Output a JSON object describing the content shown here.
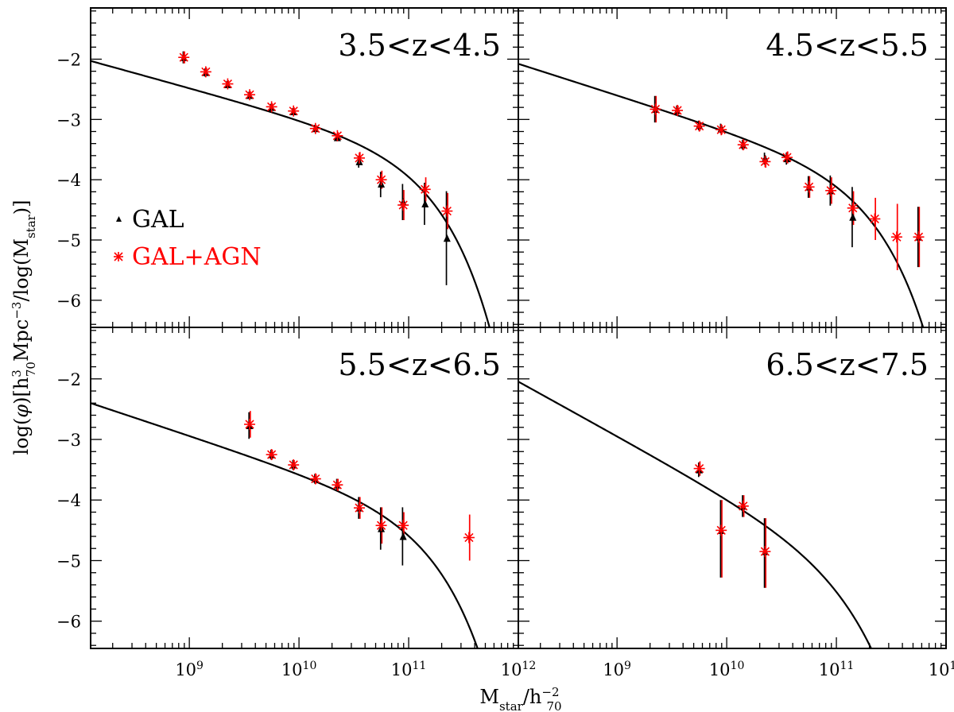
{
  "chart_data": {
    "type": "scatter",
    "figure": {
      "xlabel": {
        "main": "M",
        "sub": "star",
        "mid": "/h",
        "sub2": "70",
        "sup2": "−2"
      },
      "ylabel": {
        "p1": "log(",
        "phi": "φ",
        "p2": ")[h",
        "sup1": "3",
        "sub1": "70",
        "p3": "Mpc",
        "sup2": "−3",
        "p4": "/log(M",
        "sub2": "star",
        "p5": ")]"
      },
      "xscale": "log",
      "xlim_log10": [
        8.1,
        12.0
      ],
      "ylim": [
        -6.45,
        -1.15
      ],
      "x_tick_labels": [
        {
          "base": "10",
          "exp": "9",
          "pos": 9
        },
        {
          "base": "10",
          "exp": "10",
          "pos": 10
        },
        {
          "base": "10",
          "exp": "11",
          "pos": 11
        },
        {
          "base": "10",
          "exp": "12",
          "pos": 12
        }
      ],
      "y_ticks": [
        -2,
        -3,
        -4,
        -5,
        -6
      ],
      "y_tick_labels": [
        "−2",
        "−3",
        "−4",
        "−5",
        "−6"
      ],
      "legend": {
        "placement": "left-middle of top-left panel",
        "entries": [
          {
            "label": "GAL",
            "marker": "triangle",
            "color": "#000000"
          },
          {
            "label": "GAL+AGN",
            "marker": "asterisk",
            "color": "#ff0000"
          }
        ]
      },
      "colors": {
        "gal": "#000000",
        "agn": "#ff0000",
        "fit": "#000000"
      }
    },
    "panels": [
      {
        "label": "3.5<z<4.5",
        "fit": {
          "phi_star": 0.000151,
          "logm_star": 10.96,
          "alpha": -1.5
        },
        "gal": [
          {
            "x": 8.95,
            "y": -1.97,
            "elo": 0.1,
            "ehi": 0.1
          },
          {
            "x": 9.15,
            "y": -2.22,
            "elo": 0.07,
            "ehi": 0.07
          },
          {
            "x": 9.35,
            "y": -2.42,
            "elo": 0.06,
            "ehi": 0.06
          },
          {
            "x": 9.55,
            "y": -2.6,
            "elo": 0.06,
            "ehi": 0.06
          },
          {
            "x": 9.75,
            "y": -2.8,
            "elo": 0.06,
            "ehi": 0.06
          },
          {
            "x": 9.95,
            "y": -2.87,
            "elo": 0.06,
            "ehi": 0.06
          },
          {
            "x": 10.15,
            "y": -3.15,
            "elo": 0.06,
            "ehi": 0.06
          },
          {
            "x": 10.35,
            "y": -3.3,
            "elo": 0.06,
            "ehi": 0.06
          },
          {
            "x": 10.55,
            "y": -3.7,
            "elo": 0.1,
            "ehi": 0.1
          },
          {
            "x": 10.75,
            "y": -4.07,
            "elo": 0.22,
            "ehi": 0.2
          },
          {
            "x": 10.95,
            "y": -4.37,
            "elo": 0.3,
            "ehi": 0.3
          },
          {
            "x": 11.15,
            "y": -4.4,
            "elo": 0.35,
            "ehi": 0.35
          },
          {
            "x": 11.35,
            "y": -4.97,
            "elo": 0.78,
            "ehi": 0.78
          }
        ],
        "agn": [
          {
            "x": 8.95,
            "y": -1.97,
            "elo": 0.1,
            "ehi": 0.1
          },
          {
            "x": 9.15,
            "y": -2.21,
            "elo": 0.07,
            "ehi": 0.07
          },
          {
            "x": 9.35,
            "y": -2.41,
            "elo": 0.06,
            "ehi": 0.06
          },
          {
            "x": 9.55,
            "y": -2.59,
            "elo": 0.06,
            "ehi": 0.06
          },
          {
            "x": 9.75,
            "y": -2.79,
            "elo": 0.06,
            "ehi": 0.06
          },
          {
            "x": 9.95,
            "y": -2.86,
            "elo": 0.06,
            "ehi": 0.06
          },
          {
            "x": 10.15,
            "y": -3.15,
            "elo": 0.06,
            "ehi": 0.06
          },
          {
            "x": 10.35,
            "y": -3.27,
            "elo": 0.06,
            "ehi": 0.06
          },
          {
            "x": 10.55,
            "y": -3.64,
            "elo": 0.1,
            "ehi": 0.1
          },
          {
            "x": 10.75,
            "y": -4.0,
            "elo": 0.15,
            "ehi": 0.15
          },
          {
            "x": 10.95,
            "y": -4.42,
            "elo": 0.25,
            "ehi": 0.25
          },
          {
            "x": 11.15,
            "y": -4.16,
            "elo": 0.2,
            "ehi": 0.2
          },
          {
            "x": 11.35,
            "y": -4.52,
            "elo": 0.3,
            "ehi": 0.3
          }
        ]
      },
      {
        "label": "4.5<z<5.5",
        "fit": {
          "phi_star": 6.8e-05,
          "logm_star": 11.08,
          "alpha": -1.58
        },
        "gal": [
          {
            "x": 9.35,
            "y": -2.83,
            "elo": 0.22,
            "ehi": 0.22
          },
          {
            "x": 9.55,
            "y": -2.85,
            "elo": 0.08,
            "ehi": 0.08
          },
          {
            "x": 9.75,
            "y": -3.1,
            "elo": 0.08,
            "ehi": 0.08
          },
          {
            "x": 9.95,
            "y": -3.15,
            "elo": 0.08,
            "ehi": 0.08
          },
          {
            "x": 10.15,
            "y": -3.42,
            "elo": 0.08,
            "ehi": 0.08
          },
          {
            "x": 10.35,
            "y": -3.65,
            "elo": 0.1,
            "ehi": 0.1
          },
          {
            "x": 10.55,
            "y": -3.65,
            "elo": 0.1,
            "ehi": 0.1
          },
          {
            "x": 10.75,
            "y": -4.12,
            "elo": 0.18,
            "ehi": 0.18
          },
          {
            "x": 10.95,
            "y": -4.18,
            "elo": 0.25,
            "ehi": 0.25
          },
          {
            "x": 11.15,
            "y": -4.62,
            "elo": 0.5,
            "ehi": 0.5
          },
          {
            "x": 11.75,
            "y": -4.95,
            "elo": 0.5,
            "ehi": 0.5
          }
        ],
        "agn": [
          {
            "x": 9.35,
            "y": -2.83,
            "elo": 0.22,
            "ehi": 0.22
          },
          {
            "x": 9.55,
            "y": -2.85,
            "elo": 0.08,
            "ehi": 0.08
          },
          {
            "x": 9.75,
            "y": -3.11,
            "elo": 0.08,
            "ehi": 0.08
          },
          {
            "x": 9.95,
            "y": -3.17,
            "elo": 0.08,
            "ehi": 0.08
          },
          {
            "x": 10.15,
            "y": -3.42,
            "elo": 0.08,
            "ehi": 0.08
          },
          {
            "x": 10.35,
            "y": -3.7,
            "elo": 0.1,
            "ehi": 0.1
          },
          {
            "x": 10.55,
            "y": -3.63,
            "elo": 0.1,
            "ehi": 0.1
          },
          {
            "x": 10.75,
            "y": -4.12,
            "elo": 0.18,
            "ehi": 0.18
          },
          {
            "x": 10.95,
            "y": -4.18,
            "elo": 0.22,
            "ehi": 0.22
          },
          {
            "x": 11.15,
            "y": -4.47,
            "elo": 0.28,
            "ehi": 0.28
          },
          {
            "x": 11.35,
            "y": -4.65,
            "elo": 0.35,
            "ehi": 0.35
          },
          {
            "x": 11.55,
            "y": -4.95,
            "elo": 0.55,
            "ehi": 0.55
          },
          {
            "x": 11.75,
            "y": -4.95,
            "elo": 0.5,
            "ehi": 0.5
          }
        ]
      },
      {
        "label": "5.5<z<6.5",
        "fit": {
          "phi_star": 3.24e-05,
          "logm_star": 10.98,
          "alpha": -1.6
        },
        "gal": [
          {
            "x": 9.55,
            "y": -2.77,
            "elo": 0.22,
            "ehi": 0.22
          },
          {
            "x": 9.75,
            "y": -3.25,
            "elo": 0.08,
            "ehi": 0.08
          },
          {
            "x": 9.95,
            "y": -3.42,
            "elo": 0.08,
            "ehi": 0.08
          },
          {
            "x": 10.15,
            "y": -3.65,
            "elo": 0.08,
            "ehi": 0.08
          },
          {
            "x": 10.35,
            "y": -3.75,
            "elo": 0.1,
            "ehi": 0.1
          },
          {
            "x": 10.55,
            "y": -4.13,
            "elo": 0.18,
            "ehi": 0.18
          },
          {
            "x": 10.75,
            "y": -4.47,
            "elo": 0.35,
            "ehi": 0.35
          },
          {
            "x": 10.95,
            "y": -4.6,
            "elo": 0.48,
            "ehi": 0.48
          }
        ],
        "agn": [
          {
            "x": 9.55,
            "y": -2.75,
            "elo": 0.22,
            "ehi": 0.22
          },
          {
            "x": 9.75,
            "y": -3.25,
            "elo": 0.08,
            "ehi": 0.08
          },
          {
            "x": 9.95,
            "y": -3.42,
            "elo": 0.08,
            "ehi": 0.08
          },
          {
            "x": 10.15,
            "y": -3.65,
            "elo": 0.08,
            "ehi": 0.08
          },
          {
            "x": 10.35,
            "y": -3.75,
            "elo": 0.1,
            "ehi": 0.1
          },
          {
            "x": 10.55,
            "y": -4.13,
            "elo": 0.18,
            "ehi": 0.18
          },
          {
            "x": 10.75,
            "y": -4.42,
            "elo": 0.3,
            "ehi": 0.3
          },
          {
            "x": 10.95,
            "y": -4.42,
            "elo": 0.22,
            "ehi": 0.22
          },
          {
            "x": 11.55,
            "y": -4.62,
            "elo": 0.38,
            "ehi": 0.38
          }
        ]
      },
      {
        "label": "6.5<z<7.5",
        "fit": {
          "phi_star": 6.5e-06,
          "logm_star": 10.88,
          "alpha": -2.0
        },
        "gal": [
          {
            "x": 9.75,
            "y": -3.5,
            "elo": 0.12,
            "ehi": 0.12
          },
          {
            "x": 9.95,
            "y": -4.5,
            "elo": 0.78,
            "ehi": 0.5
          },
          {
            "x": 10.15,
            "y": -4.1,
            "elo": 0.18,
            "ehi": 0.18
          },
          {
            "x": 10.35,
            "y": -4.85,
            "elo": 0.6,
            "ehi": 0.55
          }
        ],
        "agn": [
          {
            "x": 9.75,
            "y": -3.48,
            "elo": 0.12,
            "ehi": 0.12
          },
          {
            "x": 9.95,
            "y": -4.5,
            "elo": 0.78,
            "ehi": 0.5
          },
          {
            "x": 10.15,
            "y": -4.1,
            "elo": 0.18,
            "ehi": 0.18
          },
          {
            "x": 10.35,
            "y": -4.85,
            "elo": 0.6,
            "ehi": 0.55
          }
        ]
      }
    ]
  }
}
